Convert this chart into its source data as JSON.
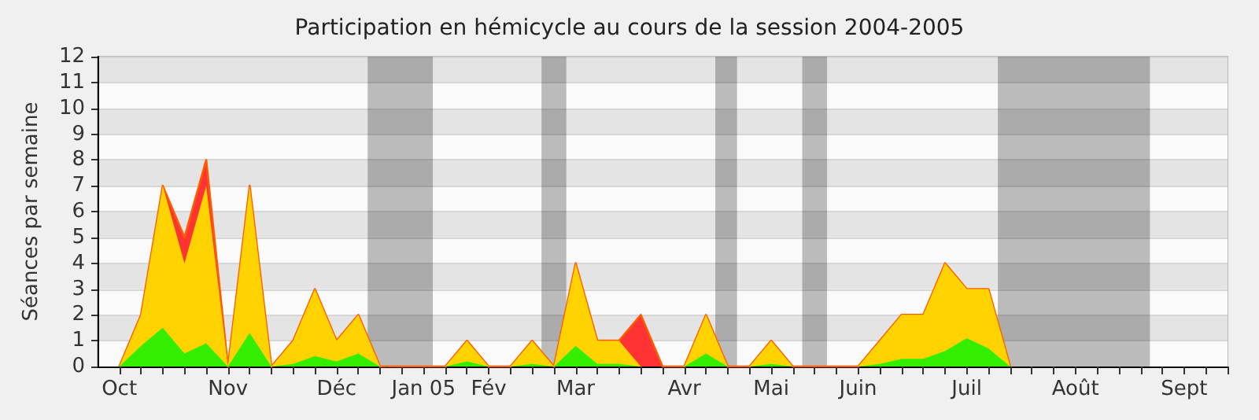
{
  "chart_data": {
    "type": "area",
    "stacked": true,
    "title": "Participation en hémicycle au cours de la session 2004-2005",
    "ylabel": "Séances par semaine",
    "x": [
      "2004-10-11",
      "2004-10-18",
      "2004-10-25",
      "2004-11-01",
      "2004-11-08",
      "2004-11-15",
      "2004-11-22",
      "2004-11-29",
      "2004-12-06",
      "2004-12-13",
      "2004-12-20",
      "2004-12-27",
      "2005-01-03",
      "2005-01-10",
      "2005-01-17",
      "2005-01-24",
      "2005-01-31",
      "2005-02-07",
      "2005-02-14",
      "2005-02-21",
      "2005-02-28",
      "2005-03-07",
      "2005-03-14",
      "2005-03-21",
      "2005-03-28",
      "2005-04-04",
      "2005-04-11",
      "2005-04-18",
      "2005-04-25",
      "2005-05-02",
      "2005-05-09",
      "2005-05-16",
      "2005-05-23",
      "2005-05-30",
      "2005-06-06",
      "2005-06-13",
      "2005-06-20",
      "2005-06-27",
      "2005-07-04",
      "2005-07-11",
      "2005-07-18",
      "2005-07-25"
    ],
    "series": [
      {
        "color": "#33ee00",
        "values": [
          0,
          0.8,
          1.5,
          0.5,
          0.9,
          0,
          1.3,
          0,
          0.1,
          0.4,
          0.2,
          0.5,
          0,
          0,
          0,
          0,
          0.2,
          0,
          0,
          0.1,
          0,
          0.8,
          0.1,
          0.1,
          0,
          0,
          0,
          0.5,
          0,
          0,
          0.1,
          0,
          0,
          0,
          0,
          0.1,
          0.3,
          0.3,
          0.6,
          1.1,
          0.7,
          0
        ]
      },
      {
        "color": "#ffd200",
        "values": [
          0,
          1.2,
          5.5,
          3.5,
          6.1,
          0,
          5.7,
          0,
          0.9,
          2.6,
          0.8,
          1.5,
          0,
          0,
          0,
          0,
          0.8,
          0,
          0,
          0.9,
          0,
          3.2,
          0.9,
          0.9,
          0,
          0,
          0,
          1.5,
          0,
          0,
          0.9,
          0,
          0,
          0,
          0,
          0.9,
          1.7,
          1.7,
          3.4,
          1.9,
          2.3,
          0
        ]
      },
      {
        "color": "#ff3333",
        "values": [
          0,
          0,
          0,
          1,
          1,
          0,
          0,
          0,
          0,
          0,
          0,
          0,
          0,
          0,
          0,
          0,
          0,
          0,
          0,
          0,
          0,
          0,
          0,
          0,
          2,
          0,
          0,
          0,
          0,
          0,
          0,
          0,
          0,
          0,
          0,
          0,
          0,
          0,
          0,
          0,
          0,
          0
        ]
      }
    ],
    "xlim": [
      "2004-10-04",
      "2005-10-03"
    ],
    "xticks": [
      {
        "value": "2004-10-11",
        "label": "Oct"
      },
      {
        "value": "2004-10-18",
        "label": null
      },
      {
        "value": "2004-10-25",
        "label": null
      },
      {
        "value": "2004-11-01",
        "label": null
      },
      {
        "value": "2004-11-08",
        "label": null
      },
      {
        "value": "2004-11-15",
        "label": "Nov"
      },
      {
        "value": "2004-11-22",
        "label": null
      },
      {
        "value": "2004-11-29",
        "label": null
      },
      {
        "value": "2004-12-06",
        "label": null
      },
      {
        "value": "2004-12-13",
        "label": null
      },
      {
        "value": "2004-12-20",
        "label": "Déc"
      },
      {
        "value": "2004-12-27",
        "label": null
      },
      {
        "value": "2005-01-03",
        "label": null
      },
      {
        "value": "2005-01-10",
        "label": null
      },
      {
        "value": "2005-01-17",
        "label": "Jan 05"
      },
      {
        "value": "2005-01-24",
        "label": null
      },
      {
        "value": "2005-01-31",
        "label": null
      },
      {
        "value": "2005-02-07",
        "label": "Fév"
      },
      {
        "value": "2005-02-14",
        "label": null
      },
      {
        "value": "2005-02-21",
        "label": null
      },
      {
        "value": "2005-02-28",
        "label": null
      },
      {
        "value": "2005-03-07",
        "label": "Mar"
      },
      {
        "value": "2005-03-14",
        "label": null
      },
      {
        "value": "2005-03-21",
        "label": null
      },
      {
        "value": "2005-03-28",
        "label": null
      },
      {
        "value": "2005-04-04",
        "label": null
      },
      {
        "value": "2005-04-11",
        "label": "Avr"
      },
      {
        "value": "2005-04-18",
        "label": null
      },
      {
        "value": "2005-04-25",
        "label": null
      },
      {
        "value": "2005-05-02",
        "label": null
      },
      {
        "value": "2005-05-09",
        "label": "Mai"
      },
      {
        "value": "2005-05-16",
        "label": null
      },
      {
        "value": "2005-05-23",
        "label": null
      },
      {
        "value": "2005-05-30",
        "label": null
      },
      {
        "value": "2005-06-06",
        "label": "Juin"
      },
      {
        "value": "2005-06-13",
        "label": null
      },
      {
        "value": "2005-06-20",
        "label": null
      },
      {
        "value": "2005-06-27",
        "label": null
      },
      {
        "value": "2005-07-04",
        "label": null
      },
      {
        "value": "2005-07-11",
        "label": "Juil"
      },
      {
        "value": "2005-07-18",
        "label": null
      },
      {
        "value": "2005-07-25",
        "label": null
      },
      {
        "value": "2005-08-01",
        "label": null
      },
      {
        "value": "2005-08-08",
        "label": null
      },
      {
        "value": "2005-08-15",
        "label": "Août"
      },
      {
        "value": "2005-08-22",
        "label": null
      },
      {
        "value": "2005-08-29",
        "label": null
      },
      {
        "value": "2005-09-05",
        "label": null
      },
      {
        "value": "2005-09-12",
        "label": null
      },
      {
        "value": "2005-09-19",
        "label": "Sept"
      },
      {
        "value": "2005-09-26",
        "label": null
      },
      {
        "value": "2005-10-03",
        "label": null
      }
    ],
    "ylim": [
      0,
      12
    ],
    "yticks": [
      0,
      1,
      2,
      3,
      4,
      5,
      6,
      7,
      8,
      9,
      10,
      11,
      12
    ],
    "grid": "y",
    "bands": [
      {
        "axis": "x",
        "from": "2004-12-30",
        "to": "2005-01-20"
      },
      {
        "axis": "x",
        "from": "2005-02-24",
        "to": "2005-03-04"
      },
      {
        "axis": "x",
        "from": "2005-04-21",
        "to": "2005-04-28"
      },
      {
        "axis": "x",
        "from": "2005-05-19",
        "to": "2005-05-27"
      },
      {
        "axis": "x",
        "from": "2005-07-21",
        "to": "2005-09-08"
      }
    ]
  }
}
